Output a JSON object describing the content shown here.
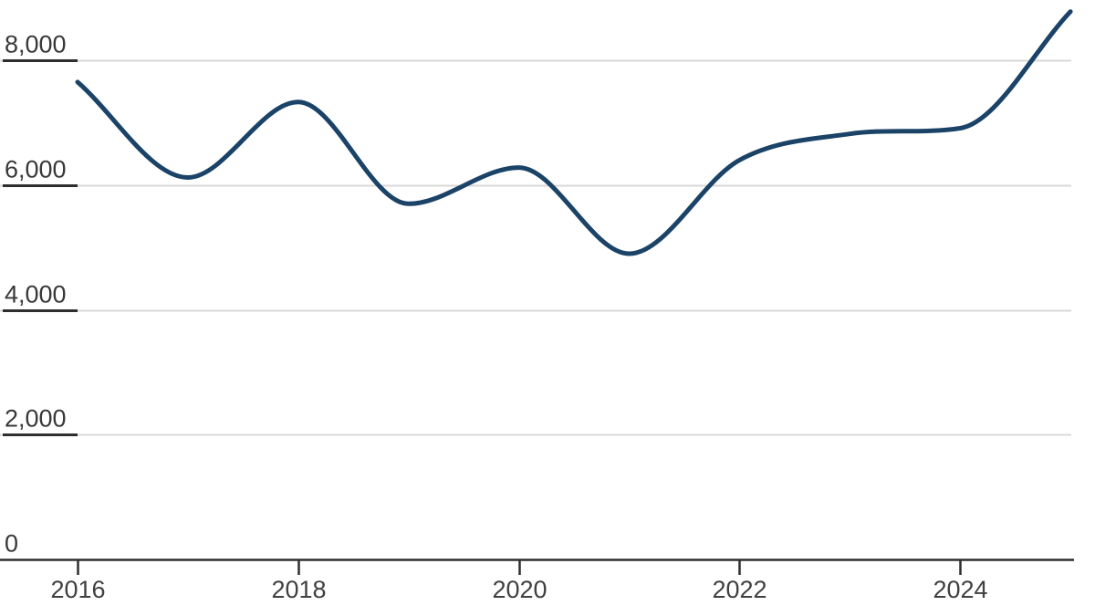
{
  "chart_data": {
    "type": "line",
    "series": [
      {
        "name": "value",
        "x": [
          2016,
          2017,
          2018,
          2019,
          2020,
          2021,
          2022,
          2023,
          2024,
          2025
        ],
        "values": [
          7650,
          6120,
          7330,
          5700,
          6280,
          4900,
          6400,
          6820,
          6910,
          8780
        ]
      }
    ],
    "title": "",
    "xlabel": "",
    "ylabel": "",
    "x_ticks": [
      {
        "value": 2016,
        "label": "2016"
      },
      {
        "value": 2018,
        "label": "2018"
      },
      {
        "value": 2020,
        "label": "2020"
      },
      {
        "value": 2022,
        "label": "2022"
      },
      {
        "value": 2024,
        "label": "2024"
      }
    ],
    "y_ticks": [
      {
        "value": 0,
        "label": "0"
      },
      {
        "value": 2000,
        "label": "2,000"
      },
      {
        "value": 4000,
        "label": "4,000"
      },
      {
        "value": 6000,
        "label": "6,000"
      },
      {
        "value": 8000,
        "label": "8,000"
      }
    ],
    "xlim": [
      2016,
      2025.05
    ],
    "ylim": [
      0,
      8960
    ],
    "grid": "horizontal-only",
    "legend": "none",
    "curve": "smooth-monotone",
    "colors": {
      "line": "#1b4368",
      "gridline": "#d8d8d8",
      "axis": "#2e2e2e",
      "label_underline": "#2e2e2e",
      "tick_text": "#3c3c3c",
      "background": "#ffffff"
    }
  }
}
